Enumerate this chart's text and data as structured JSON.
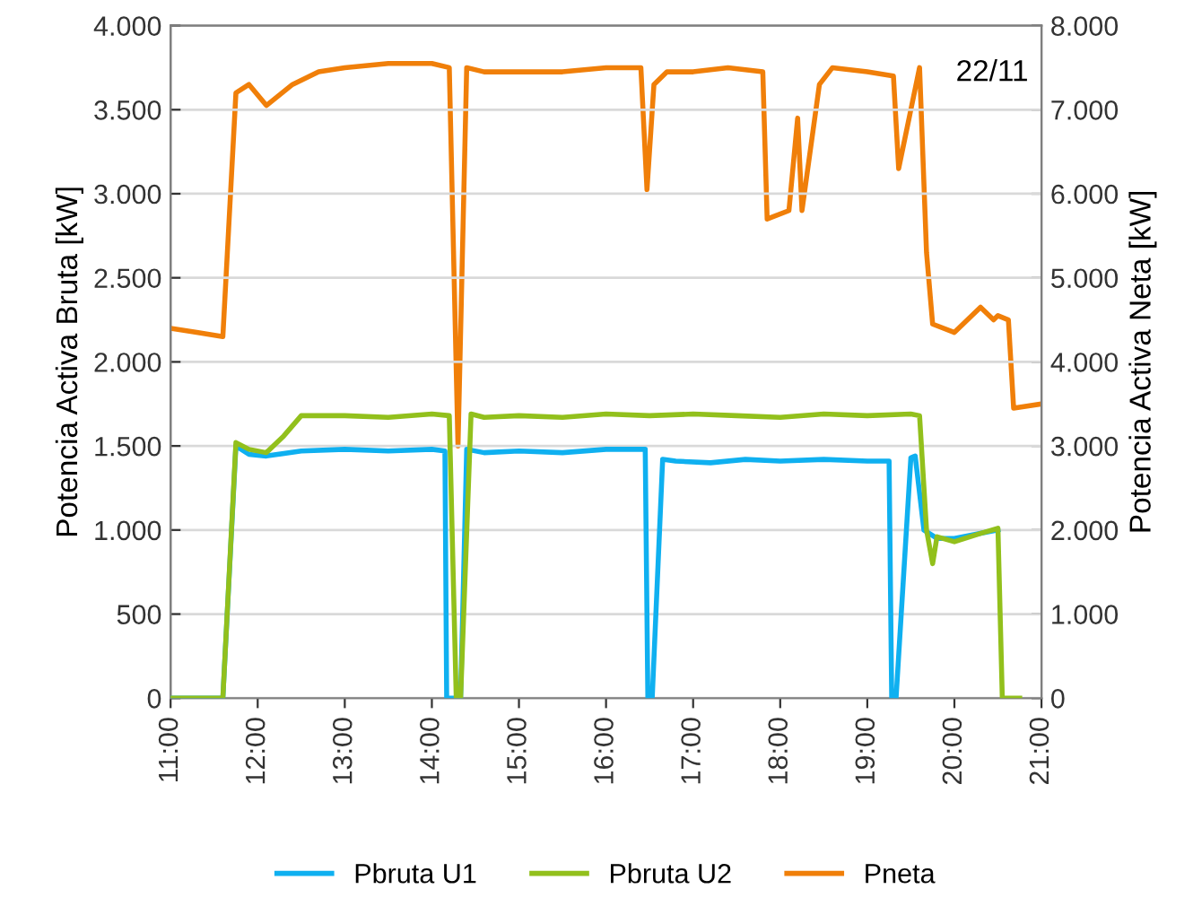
{
  "chart_data": {
    "type": "line",
    "ylabel": "Potencia Activa Bruta [kW]",
    "y2label": "Potencia Activa Neta [kW]",
    "annotations": [
      "22/11"
    ],
    "xlim": [
      11,
      21
    ],
    "xticks": [
      {
        "value": 11,
        "label": "11:00"
      },
      {
        "value": 12,
        "label": "12:00"
      },
      {
        "value": 13,
        "label": "13:00"
      },
      {
        "value": 14,
        "label": "14:00"
      },
      {
        "value": 15,
        "label": "15:00"
      },
      {
        "value": 16,
        "label": "16:00"
      },
      {
        "value": 17,
        "label": "17:00"
      },
      {
        "value": 18,
        "label": "18:00"
      },
      {
        "value": 19,
        "label": "19:00"
      },
      {
        "value": 20,
        "label": "20:00"
      },
      {
        "value": 21,
        "label": "21:00"
      }
    ],
    "ylim": [
      0,
      4000
    ],
    "yticks": [
      0,
      500,
      {
        "value": 1000,
        "label": "1.000"
      },
      {
        "value": 1500,
        "label": "1.500"
      },
      {
        "value": 2000,
        "label": "2.000"
      },
      {
        "value": 2500,
        "label": "2.500"
      },
      {
        "value": 3000,
        "label": "3.000"
      },
      {
        "value": 3500,
        "label": "3.500"
      },
      {
        "value": 4000,
        "label": "4.000"
      }
    ],
    "y2lim": [
      0,
      8000
    ],
    "y2ticks": [
      0,
      {
        "value": 1000,
        "label": "1.000"
      },
      {
        "value": 2000,
        "label": "2.000"
      },
      {
        "value": 3000,
        "label": "3.000"
      },
      {
        "value": 4000,
        "label": "4.000"
      },
      {
        "value": 5000,
        "label": "5.000"
      },
      {
        "value": 6000,
        "label": "6.000"
      },
      {
        "value": 7000,
        "label": "7.000"
      },
      {
        "value": 8000,
        "label": "8.000"
      }
    ],
    "grid": "y",
    "legend": "bottom",
    "marker": "none",
    "line_style": "solid",
    "series": [
      {
        "name": "Pbruta U1",
        "color": "#0fb0f0",
        "x": [
          11.0,
          11.6,
          11.75,
          11.9,
          12.1,
          12.5,
          13.0,
          13.5,
          14.0,
          14.15,
          14.17,
          14.33,
          14.4,
          14.6,
          15.0,
          15.5,
          16.0,
          16.45,
          16.48,
          16.53,
          16.65,
          16.8,
          17.2,
          17.6,
          18.0,
          18.5,
          19.0,
          19.25,
          19.28,
          19.33,
          19.5,
          19.55,
          19.65,
          19.8,
          20.0,
          20.3,
          20.5
        ],
        "values": [
          0,
          0,
          1500,
          1450,
          1440,
          1470,
          1480,
          1470,
          1480,
          1470,
          0,
          0,
          1480,
          1460,
          1470,
          1460,
          1480,
          1480,
          0,
          0,
          1420,
          1410,
          1400,
          1420,
          1410,
          1420,
          1410,
          1410,
          0,
          0,
          1430,
          1440,
          1000,
          950,
          950,
          980,
          1000
        ]
      },
      {
        "name": "Pbruta U2",
        "color": "#92c01c",
        "x": [
          11.0,
          11.6,
          11.75,
          11.9,
          12.1,
          12.3,
          12.5,
          13.0,
          13.5,
          14.0,
          14.2,
          14.28,
          14.33,
          14.45,
          14.6,
          15.0,
          15.5,
          16.0,
          16.5,
          17.0,
          17.5,
          18.0,
          18.5,
          19.0,
          19.5,
          19.6,
          19.68,
          19.75,
          19.8,
          20.0,
          20.3,
          20.5,
          20.55,
          20.75
        ],
        "values": [
          0,
          0,
          1520,
          1480,
          1460,
          1560,
          1680,
          1680,
          1670,
          1690,
          1680,
          0,
          0,
          1690,
          1670,
          1680,
          1670,
          1690,
          1680,
          1690,
          1680,
          1670,
          1690,
          1680,
          1690,
          1680,
          1000,
          800,
          960,
          930,
          980,
          1010,
          0,
          0
        ]
      },
      {
        "name": "Pneta",
        "color": "#f07f09",
        "axis": "y2",
        "x": [
          11.0,
          11.3,
          11.6,
          11.75,
          11.9,
          12.1,
          12.4,
          12.7,
          13.0,
          13.5,
          14.0,
          14.2,
          14.3,
          14.4,
          14.6,
          15.0,
          15.5,
          16.0,
          16.4,
          16.47,
          16.55,
          16.7,
          17.0,
          17.4,
          17.8,
          17.85,
          18.1,
          18.2,
          18.25,
          18.45,
          18.6,
          19.0,
          19.3,
          19.36,
          19.6,
          19.68,
          19.75,
          20.0,
          20.3,
          20.45,
          20.5,
          20.62,
          20.68,
          21.0
        ],
        "values": [
          4400,
          4350,
          4300,
          7200,
          7300,
          7050,
          7300,
          7450,
          7500,
          7550,
          7550,
          7500,
          3000,
          7500,
          7450,
          7450,
          7450,
          7500,
          7500,
          6050,
          7300,
          7450,
          7450,
          7500,
          7450,
          5700,
          5800,
          6900,
          5800,
          7300,
          7500,
          7450,
          7400,
          6300,
          7500,
          5300,
          4450,
          4350,
          4650,
          4500,
          4550,
          4500,
          3450,
          3500
        ]
      }
    ]
  }
}
